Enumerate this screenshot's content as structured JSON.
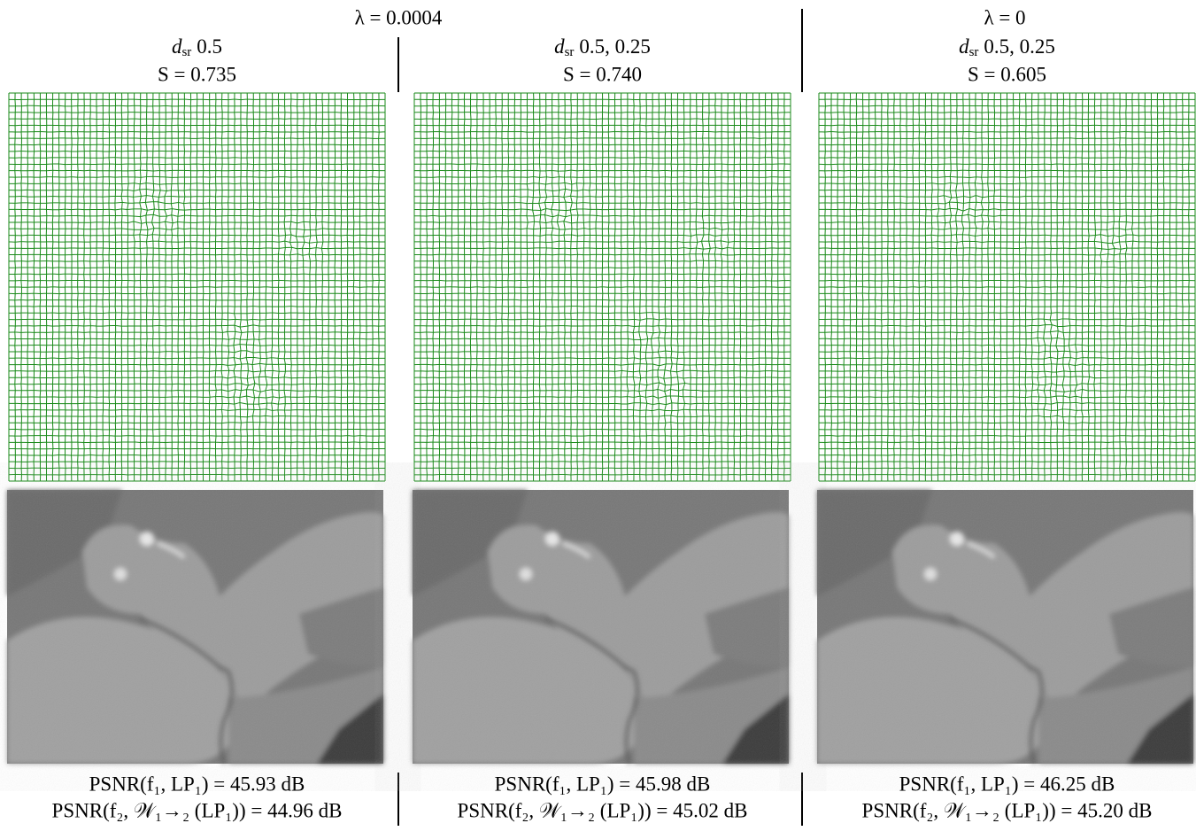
{
  "header": {
    "lambda_left": "λ = 0.0004",
    "lambda_right": "λ = 0"
  },
  "panels": [
    {
      "d": "d",
      "d_sub": "sr",
      "d_values": "0.5",
      "s": "S = 0.735",
      "psnr1": "PSNR(f₁, LP₁) = 45.93 dB",
      "psnr2": "PSNR(f₂, 𝒲₁→₂ (LP₁)) = 44.96 dB"
    },
    {
      "d": "d",
      "d_sub": "sr",
      "d_values": "0.5, 0.25",
      "s": "S = 0.740",
      "psnr1": "PSNR(f₁, LP₁) = 45.98 dB",
      "psnr2": "PSNR(f₂, 𝒲₁→₂ (LP₁)) = 45.02 dB"
    },
    {
      "d": "d",
      "d_sub": "sr",
      "d_values": "0.5, 0.25",
      "s": "S = 0.605",
      "psnr1": "PSNR(f₁, LP₁) = 46.25 dB",
      "psnr2": "PSNR(f₂, 𝒲₁→₂ (LP₁)) = 45.20 dB"
    }
  ]
}
